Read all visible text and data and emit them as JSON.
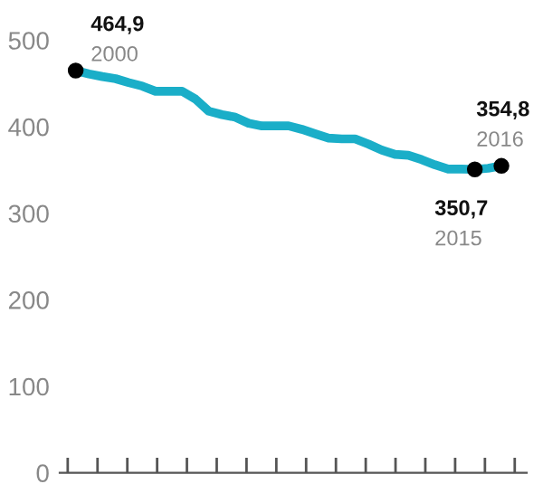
{
  "chart_data": {
    "type": "line",
    "categories": [
      null,
      null,
      null,
      null,
      null,
      null,
      null,
      null,
      null,
      null,
      null,
      null,
      null,
      null,
      null,
      null,
      null,
      null,
      null,
      null,
      null,
      null,
      null,
      null,
      null,
      null,
      null,
      null,
      null,
      null,
      null,
      null,
      null
    ],
    "series": [
      {
        "color": "#1aaec8",
        "values": [
          464.9,
          461,
          458,
          455.5,
          451,
          447,
          441,
          441,
          441,
          432,
          418,
          414,
          411,
          404,
          401,
          401,
          401,
          397,
          392,
          387,
          386,
          386,
          380,
          373,
          368,
          367,
          362,
          356,
          351,
          351,
          350.7,
          352,
          354.8
        ]
      },
      {
        "type": "scatter",
        "color": "#000000",
        "values": [
          464.9,
          null,
          null,
          null,
          null,
          null,
          null,
          null,
          null,
          null,
          null,
          null,
          null,
          null,
          null,
          null,
          null,
          null,
          null,
          null,
          null,
          null,
          null,
          null,
          null,
          null,
          null,
          null,
          null,
          null,
          350.7,
          null,
          354.8
        ]
      }
    ],
    "annotations": [
      "464,9",
      "2000",
      "350,7",
      "2015",
      "354,8",
      "2016"
    ],
    "ylim": [
      0,
      500
    ],
    "yticks": [
      0,
      100,
      200,
      300,
      400,
      500
    ],
    "grid": false,
    "legend": false
  }
}
